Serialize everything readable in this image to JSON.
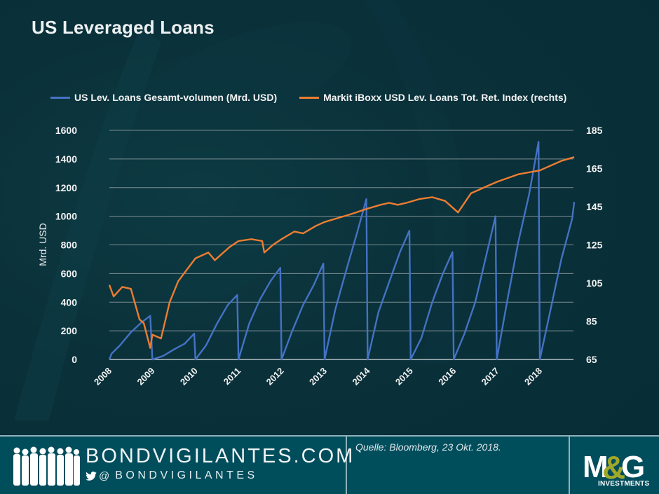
{
  "title": "US Leveraged Loans",
  "legend": [
    {
      "label": "US Lev. Loans Gesamt-volumen (Mrd. USD)",
      "color": "#4472c4"
    },
    {
      "label": "Markit iBoxx USD Lev. Loans Tot. Ret. Index (rechts)",
      "color": "#ed7d31"
    }
  ],
  "axes": {
    "left_label": "Mrd. USD",
    "left_ticks": [
      "0",
      "200",
      "400",
      "600",
      "800",
      "1000",
      "1200",
      "1400",
      "1600"
    ],
    "right_ticks": [
      "65",
      "85",
      "105",
      "125",
      "145",
      "165",
      "185"
    ],
    "x_ticks": [
      "2008",
      "2009",
      "2010",
      "2011",
      "2012",
      "2013",
      "2014",
      "2015",
      "2016",
      "2017",
      "2018"
    ]
  },
  "footer": {
    "site": "BONDVIGILANTES.COM",
    "handle_at": "@",
    "handle": "BONDVIGILANTES",
    "source": "Quelle: Bloomberg, 23 Okt. 2018.",
    "logo_text": "M&G",
    "logo_sub": "INVESTMENTS"
  },
  "chart_data": {
    "type": "line",
    "title": "US Leveraged Loans",
    "xlabel": "",
    "ylabel": "Mrd. USD",
    "y2label": "Index (rechts)",
    "ylim": [
      0,
      1600
    ],
    "y2lim": [
      65,
      185
    ],
    "grid": true,
    "legend_position": "top",
    "categories": [
      "2008",
      "2009",
      "2010",
      "2011",
      "2012",
      "2013",
      "2014",
      "2015",
      "2016",
      "2017",
      "2018"
    ],
    "series": [
      {
        "name": "US Lev. Loans Gesamt-volumen (Mrd. USD)",
        "axis": "left",
        "color": "#4472c4",
        "note": "year-to-date cumulative volume, resets each January",
        "x": [
          2008.0,
          2008.05,
          2008.25,
          2008.5,
          2008.75,
          2008.95,
          2009.0,
          2009.25,
          2009.5,
          2009.75,
          2009.97,
          2010.0,
          2010.25,
          2010.5,
          2010.75,
          2010.97,
          2011.0,
          2011.25,
          2011.5,
          2011.75,
          2011.97,
          2012.0,
          2012.25,
          2012.5,
          2012.75,
          2012.97,
          2013.0,
          2013.25,
          2013.5,
          2013.75,
          2013.97,
          2014.0,
          2014.25,
          2014.5,
          2014.75,
          2014.97,
          2015.0,
          2015.25,
          2015.5,
          2015.75,
          2015.97,
          2016.0,
          2016.25,
          2016.5,
          2016.75,
          2016.97,
          2017.0,
          2017.25,
          2017.5,
          2017.75,
          2017.97,
          2018.0,
          2018.25,
          2018.5,
          2018.75,
          2018.8
        ],
        "values": [
          0,
          40,
          100,
          190,
          260,
          305,
          0,
          25,
          70,
          110,
          180,
          0,
          100,
          250,
          380,
          450,
          0,
          250,
          420,
          550,
          640,
          0,
          200,
          380,
          520,
          670,
          0,
          350,
          620,
          880,
          1120,
          0,
          330,
          540,
          750,
          900,
          0,
          150,
          400,
          600,
          750,
          0,
          180,
          400,
          720,
          1000,
          0,
          420,
          820,
          1150,
          1520,
          0,
          350,
          700,
          980,
          1100
        ]
      },
      {
        "name": "Markit iBoxx USD Lev. Loans Tot. Ret. Index (rechts)",
        "axis": "right",
        "color": "#ed7d31",
        "x": [
          2008.0,
          2008.1,
          2008.3,
          2008.5,
          2008.7,
          2008.8,
          2008.95,
          2009.0,
          2009.2,
          2009.4,
          2009.6,
          2009.8,
          2010.0,
          2010.3,
          2010.45,
          2010.6,
          2010.8,
          2011.0,
          2011.3,
          2011.55,
          2011.6,
          2011.8,
          2012.0,
          2012.3,
          2012.5,
          2012.8,
          2013.0,
          2013.3,
          2013.6,
          2014.0,
          2014.3,
          2014.5,
          2014.7,
          2014.9,
          2015.2,
          2015.5,
          2015.8,
          2016.0,
          2016.1,
          2016.4,
          2016.8,
          2017.0,
          2017.5,
          2018.0,
          2018.5,
          2018.8
        ],
        "values": [
          104,
          98,
          103,
          102,
          86,
          84,
          71,
          78,
          76,
          95,
          106,
          112,
          118,
          121,
          117,
          120,
          124,
          127,
          128,
          127,
          121,
          125,
          128,
          132,
          131,
          135,
          137,
          139,
          141,
          144,
          146,
          147,
          146,
          147,
          149,
          150,
          148,
          144,
          142,
          152,
          156,
          158,
          162,
          164,
          169,
          171
        ]
      }
    ]
  }
}
